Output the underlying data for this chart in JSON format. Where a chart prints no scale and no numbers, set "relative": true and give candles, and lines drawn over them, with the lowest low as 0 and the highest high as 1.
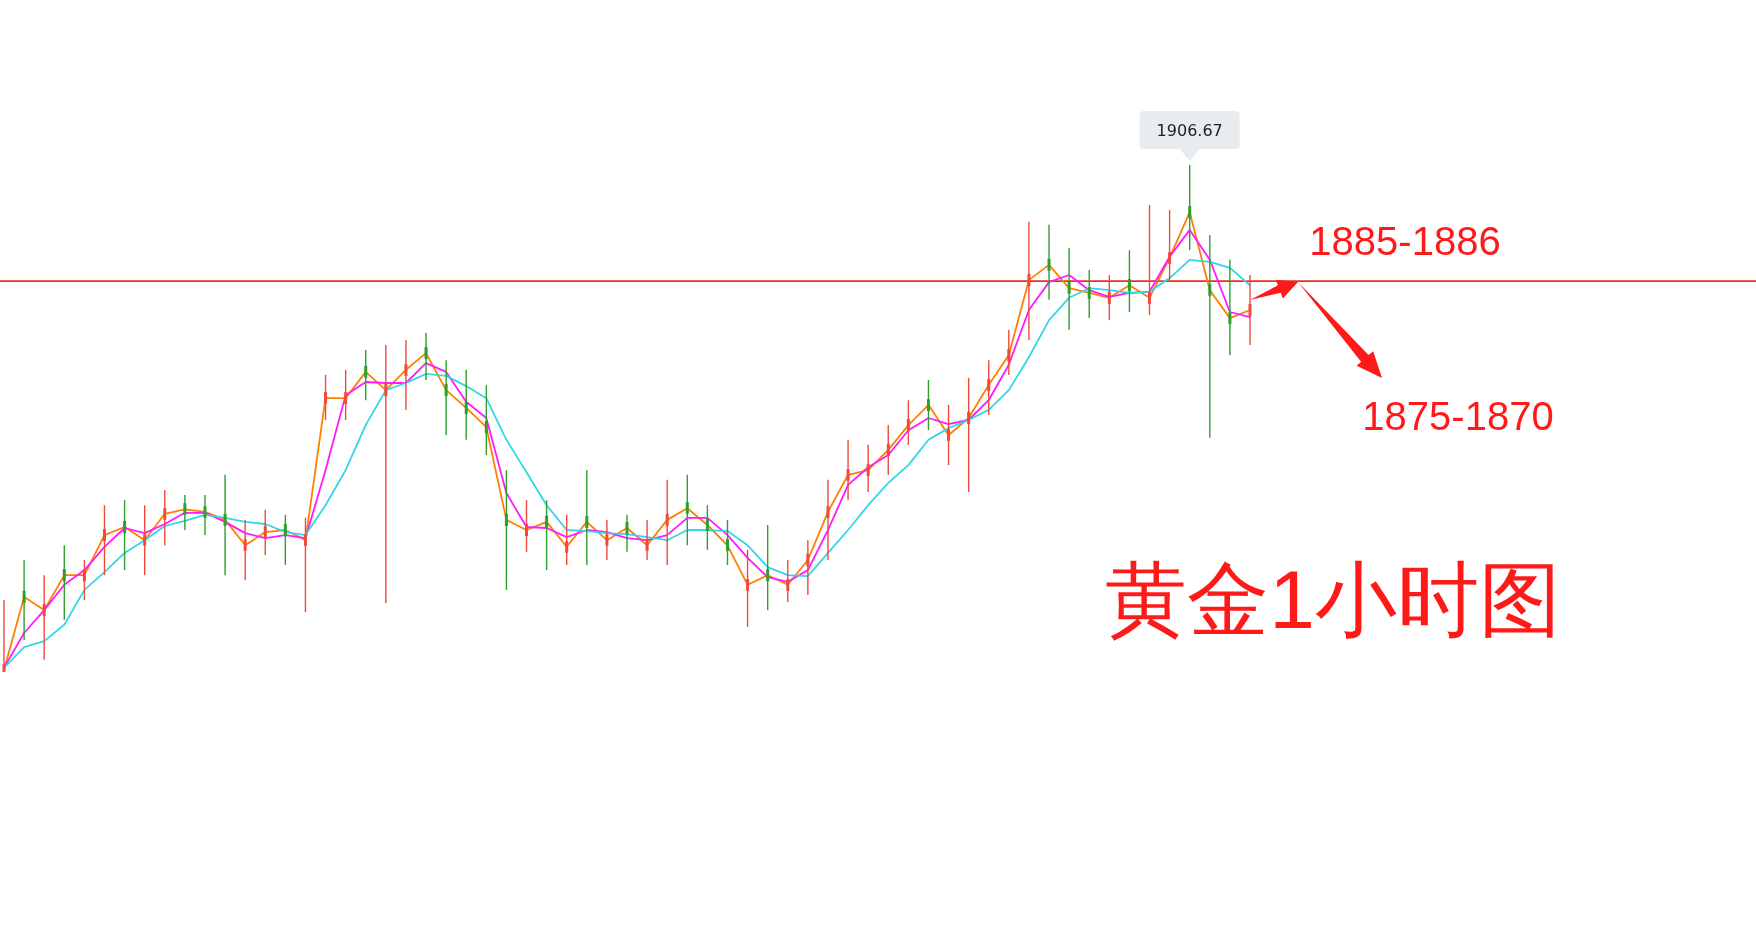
{
  "chart_data": {
    "type": "candlestick",
    "relative": true,
    "title": "黄金1小时图",
    "grid": false,
    "categories": [
      null,
      null,
      null,
      null,
      null,
      null,
      null,
      null,
      null,
      null,
      null,
      null,
      null,
      null,
      null,
      null,
      null,
      null,
      null,
      null,
      null,
      null,
      null,
      null,
      null,
      null,
      null,
      null,
      null,
      null,
      null,
      null,
      null,
      null,
      null,
      null,
      null,
      null,
      null,
      null,
      null,
      null,
      null,
      null,
      null,
      null,
      null,
      null,
      null,
      null,
      null,
      null,
      null,
      null,
      null,
      null,
      null,
      null,
      null,
      null,
      null,
      null,
      null
    ],
    "ohlc": [
      [
        0,
        0.142,
        0,
        0.016
      ],
      [
        0.16,
        0.221,
        0.063,
        0.136
      ],
      [
        0.11,
        0.191,
        0.024,
        0.134
      ],
      [
        0.203,
        0.25,
        0.103,
        0.179
      ],
      [
        0.179,
        0.221,
        0.142,
        0.203
      ],
      [
        0.258,
        0.329,
        0.191,
        0.282
      ],
      [
        0.298,
        0.339,
        0.201,
        0.274
      ],
      [
        0.249,
        0.329,
        0.191,
        0.272
      ],
      [
        0.3,
        0.359,
        0.25,
        0.323
      ],
      [
        0.333,
        0.349,
        0.28,
        0.31
      ],
      [
        0.327,
        0.349,
        0.27,
        0.304
      ],
      [
        0.312,
        0.389,
        0.191,
        0.288
      ],
      [
        0.239,
        0.3,
        0.181,
        0.262
      ],
      [
        0.264,
        0.32,
        0.231,
        0.288
      ],
      [
        0.292,
        0.31,
        0.211,
        0.268
      ],
      [
        0.249,
        0.304,
        0.118,
        0.272
      ],
      [
        0.529,
        0.586,
        0.497,
        0.552
      ],
      [
        0.529,
        0.596,
        0.497,
        0.552
      ],
      [
        0.604,
        0.635,
        0.536,
        0.58
      ],
      [
        0.544,
        0.645,
        0.136,
        0.568
      ],
      [
        0.584,
        0.655,
        0.517,
        0.607
      ],
      [
        0.641,
        0.669,
        0.576,
        0.617
      ],
      [
        0.568,
        0.615,
        0.467,
        0.544
      ],
      [
        0.533,
        0.596,
        0.458,
        0.509
      ],
      [
        0.495,
        0.566,
        0.428,
        0.471
      ],
      [
        0.312,
        0.398,
        0.162,
        0.288
      ],
      [
        0.268,
        0.339,
        0.237,
        0.292
      ],
      [
        0.308,
        0.339,
        0.201,
        0.284
      ],
      [
        0.235,
        0.31,
        0.211,
        0.258
      ],
      [
        0.308,
        0.398,
        0.211,
        0.284
      ],
      [
        0.249,
        0.3,
        0.221,
        0.272
      ],
      [
        0.296,
        0.31,
        0.237,
        0.272
      ],
      [
        0.239,
        0.3,
        0.221,
        0.262
      ],
      [
        0.288,
        0.379,
        0.211,
        0.312
      ],
      [
        0.335,
        0.389,
        0.25,
        0.312
      ],
      [
        0.302,
        0.329,
        0.241,
        0.278
      ],
      [
        0.262,
        0.3,
        0.211,
        0.239
      ],
      [
        0.16,
        0.241,
        0.089,
        0.183
      ],
      [
        0.203,
        0.29,
        0.122,
        0.179
      ],
      [
        0.16,
        0.221,
        0.138,
        0.183
      ],
      [
        0.209,
        0.26,
        0.152,
        0.233
      ],
      [
        0.304,
        0.379,
        0.221,
        0.327
      ],
      [
        0.377,
        0.458,
        0.339,
        0.4
      ],
      [
        0.387,
        0.448,
        0.355,
        0.41
      ],
      [
        0.426,
        0.487,
        0.389,
        0.45
      ],
      [
        0.475,
        0.536,
        0.448,
        0.499
      ],
      [
        0.538,
        0.576,
        0.477,
        0.515
      ],
      [
        0.456,
        0.527,
        0.408,
        0.479
      ],
      [
        0.489,
        0.58,
        0.355,
        0.513
      ],
      [
        0.554,
        0.615,
        0.507,
        0.578
      ],
      [
        0.613,
        0.675,
        0.586,
        0.637
      ],
      [
        0.761,
        0.888,
        0.655,
        0.785
      ],
      [
        0.815,
        0.882,
        0.734,
        0.791
      ],
      [
        0.769,
        0.836,
        0.675,
        0.746
      ],
      [
        0.759,
        0.793,
        0.698,
        0.736
      ],
      [
        0.726,
        0.783,
        0.694,
        0.75
      ],
      [
        0.775,
        0.832,
        0.71,
        0.751
      ],
      [
        0.726,
        0.921,
        0.704,
        0.75
      ],
      [
        0.805,
        0.911,
        0.769,
        0.828
      ],
      [
        0.919,
        1.0,
        0.832,
        0.895
      ],
      [
        0.765,
        0.862,
        0.462,
        0.742
      ],
      [
        0.71,
        0.813,
        0.625,
        0.686
      ],
      [
        0.702,
        0.783,
        0.645,
        0.726
      ]
    ],
    "colors": [
      "#ef4a3c",
      "#2ca02c",
      "#ef4a3c",
      "#2ca02c",
      "#ef4a3c",
      "#ef4a3c",
      "#2ca02c",
      "#ef4a3c",
      "#ef4a3c",
      "#2ca02c",
      "#2ca02c",
      "#2ca02c",
      "#ef4a3c",
      "#ef4a3c",
      "#2ca02c",
      "#ef4a3c",
      "#ef4a3c",
      "#ef4a3c",
      "#2ca02c",
      "#ef4a3c",
      "#ef4a3c",
      "#2ca02c",
      "#2ca02c",
      "#2ca02c",
      "#2ca02c",
      "#2ca02c",
      "#ef4a3c",
      "#2ca02c",
      "#ef4a3c",
      "#2ca02c",
      "#ef4a3c",
      "#2ca02c",
      "#ef4a3c",
      "#ef4a3c",
      "#2ca02c",
      "#2ca02c",
      "#2ca02c",
      "#ef4a3c",
      "#2ca02c",
      "#ef4a3c",
      "#ef4a3c",
      "#ef4a3c",
      "#ef4a3c",
      "#ef4a3c",
      "#ef4a3c",
      "#ef4a3c",
      "#2ca02c",
      "#ef4a3c",
      "#ef4a3c",
      "#ef4a3c",
      "#ef4a3c",
      "#ef4a3c",
      "#2ca02c",
      "#2ca02c",
      "#2ca02c",
      "#ef4a3c",
      "#2ca02c",
      "#ef4a3c",
      "#ef4a3c",
      "#2ca02c",
      "#2ca02c",
      "#2ca02c",
      "#ef4a3c"
    ],
    "series": [
      {
        "type": "line",
        "color": "#ff8000",
        "values": [
          0.004,
          0.148,
          0.122,
          0.191,
          0.191,
          0.27,
          0.286,
          0.26,
          0.312,
          0.321,
          0.316,
          0.3,
          0.25,
          0.276,
          0.28,
          0.26,
          0.54,
          0.54,
          0.592,
          0.556,
          0.596,
          0.629,
          0.556,
          0.521,
          0.483,
          0.3,
          0.28,
          0.296,
          0.247,
          0.296,
          0.26,
          0.284,
          0.25,
          0.3,
          0.323,
          0.29,
          0.25,
          0.172,
          0.191,
          0.172,
          0.221,
          0.316,
          0.389,
          0.398,
          0.438,
          0.487,
          0.527,
          0.467,
          0.501,
          0.566,
          0.625,
          0.773,
          0.803,
          0.757,
          0.748,
          0.738,
          0.763,
          0.738,
          0.817,
          0.907,
          0.753,
          0.698,
          0.714
        ]
      },
      {
        "type": "line",
        "color": "#ff1aff",
        "values": [
          0.008,
          0.077,
          0.122,
          0.172,
          0.201,
          0.247,
          0.284,
          0.274,
          0.292,
          0.314,
          0.314,
          0.296,
          0.274,
          0.264,
          0.27,
          0.264,
          0.398,
          0.546,
          0.572,
          0.57,
          0.57,
          0.609,
          0.592,
          0.533,
          0.501,
          0.353,
          0.286,
          0.284,
          0.266,
          0.28,
          0.276,
          0.264,
          0.26,
          0.27,
          0.304,
          0.304,
          0.27,
          0.225,
          0.187,
          0.178,
          0.201,
          0.28,
          0.369,
          0.404,
          0.428,
          0.477,
          0.501,
          0.489,
          0.497,
          0.536,
          0.606,
          0.714,
          0.769,
          0.783,
          0.753,
          0.74,
          0.748,
          0.75,
          0.819,
          0.872,
          0.813,
          0.71,
          0.7
        ]
      },
      {
        "type": "line",
        "color": "#33d6e8",
        "values": [
          0.008,
          0.049,
          0.061,
          0.093,
          0.162,
          0.197,
          0.235,
          0.26,
          0.288,
          0.298,
          0.31,
          0.304,
          0.296,
          0.292,
          0.276,
          0.27,
          0.329,
          0.398,
          0.487,
          0.556,
          0.57,
          0.588,
          0.584,
          0.564,
          0.54,
          0.458,
          0.394,
          0.329,
          0.28,
          0.278,
          0.274,
          0.272,
          0.266,
          0.26,
          0.28,
          0.28,
          0.278,
          0.25,
          0.207,
          0.191,
          0.189,
          0.235,
          0.28,
          0.329,
          0.373,
          0.408,
          0.458,
          0.481,
          0.497,
          0.517,
          0.556,
          0.621,
          0.694,
          0.738,
          0.757,
          0.753,
          0.748,
          0.75,
          0.777,
          0.813,
          0.809,
          0.797,
          0.763
        ]
      }
    ],
    "ref_lines": [
      {
        "axis": "y",
        "value": 0.771,
        "color": "#e8321e"
      }
    ],
    "annotations": [
      {
        "text": "1906.67",
        "y": 1
      },
      "1885-1886",
      "1875-1870"
    ]
  }
}
